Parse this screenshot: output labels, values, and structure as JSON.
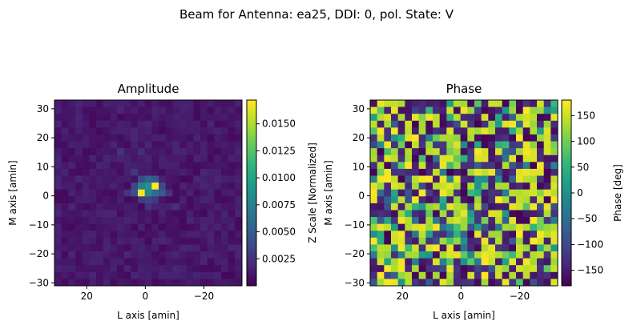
{
  "suptitle": "Beam for Antenna: ea25, DDI: 0, pol. State: V",
  "chart_data": [
    {
      "type": "heatmap",
      "title": "Amplitude",
      "xlabel": "L axis [amin]",
      "ylabel": "M axis [amin]",
      "xlim": [
        31,
        -33
      ],
      "ylim": [
        -31,
        33
      ],
      "xticks": [
        20,
        0,
        -20
      ],
      "xtick_labels": [
        "20",
        "0",
        "−20"
      ],
      "yticks": [
        -30,
        -20,
        -10,
        0,
        10,
        20,
        30
      ],
      "ytick_labels": [
        "−30",
        "−20",
        "−10",
        "0",
        "10",
        "20",
        "30"
      ],
      "grid_size": [
        27,
        27
      ],
      "colormap": "viridis",
      "colorbar": {
        "label": "Z Scale [Normalized]",
        "vmin": 0.0,
        "vmax": 0.0172,
        "ticks": [
          0.0025,
          0.005,
          0.0075,
          0.01,
          0.0125,
          0.015
        ],
        "tick_labels": [
          "0.0025",
          "0.0050",
          "0.0075",
          "0.0100",
          "0.0125",
          "0.0150"
        ]
      },
      "cells": [
        {
          "col": 14,
          "row": 12,
          "value": 0.0172
        },
        {
          "col": 12,
          "row": 13,
          "value": 0.0168
        },
        {
          "col": 13,
          "row": 12,
          "value": 0.0085
        },
        {
          "col": 12,
          "row": 12,
          "value": 0.0075
        },
        {
          "col": 14,
          "row": 13,
          "value": 0.006
        },
        {
          "col": 13,
          "row": 13,
          "value": 0.008
        },
        {
          "col": 11,
          "row": 13,
          "value": 0.0042
        },
        {
          "col": 15,
          "row": 13,
          "value": 0.0048
        },
        {
          "col": 13,
          "row": 11,
          "value": 0.0055
        },
        {
          "col": 12,
          "row": 11,
          "value": 0.004
        },
        {
          "col": 14,
          "row": 11,
          "value": 0.0045
        },
        {
          "col": 15,
          "row": 12,
          "value": 0.0038
        },
        {
          "col": 11,
          "row": 12,
          "value": 0.0036
        },
        {
          "col": 13,
          "row": 14,
          "value": 0.0035
        },
        {
          "col": 12,
          "row": 14,
          "value": 0.003
        },
        {
          "col": 14,
          "row": 14,
          "value": 0.0028
        },
        {
          "col": 11,
          "row": 10,
          "value": 0.0028
        },
        {
          "col": 10,
          "row": 13,
          "value": 0.0026
        },
        {
          "col": 16,
          "row": 13,
          "value": 0.0026
        },
        {
          "col": 13,
          "row": 15,
          "value": 0.0024
        },
        {
          "col": 9,
          "row": 7,
          "value": 0.0026
        },
        {
          "col": 12,
          "row": 7,
          "value": 0.0022
        },
        {
          "col": 17,
          "row": 15,
          "value": 0.0024
        }
      ],
      "background_range": [
        0.0004,
        0.0018
      ]
    },
    {
      "type": "heatmap",
      "title": "Phase",
      "xlabel": "L axis [amin]",
      "ylabel": "M axis [amin]",
      "xlim": [
        31,
        -33
      ],
      "ylim": [
        -31,
        33
      ],
      "xticks": [
        20,
        0,
        -20
      ],
      "xtick_labels": [
        "20",
        "0",
        "−20"
      ],
      "yticks": [
        -30,
        -20,
        -10,
        0,
        10,
        20,
        30
      ],
      "ytick_labels": [
        "−30",
        "−20",
        "−10",
        "0",
        "10",
        "20",
        "30"
      ],
      "grid_size": [
        27,
        27
      ],
      "colormap": "viridis",
      "colorbar": {
        "label": "Phase [deg]",
        "vmin": -180,
        "vmax": 180,
        "ticks": [
          -150,
          -100,
          -50,
          0,
          50,
          100,
          150
        ],
        "tick_labels": [
          "−150",
          "−100",
          "−50",
          "0",
          "50",
          "100",
          "150"
        ]
      },
      "values_distribution": "random, alternating roughly between -180 and 180 deg"
    }
  ]
}
